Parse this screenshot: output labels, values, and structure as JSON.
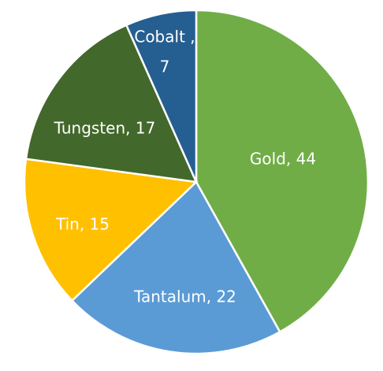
{
  "chart_data": {
    "type": "pie",
    "title": "",
    "start_angle_deg": 0,
    "direction": "clockwise",
    "legend": "none",
    "slices": [
      {
        "label": "Gold",
        "value": 44,
        "color": "#70AD47",
        "label_text": "Gold, 44"
      },
      {
        "label": "Tantalum",
        "value": 22,
        "color": "#5B9BD5",
        "label_text": "Tantalum, 22"
      },
      {
        "label": "Tin",
        "value": 15,
        "color": "#FFC000",
        "label_text": "Tin, 15"
      },
      {
        "label": "Tungsten",
        "value": 17,
        "color": "#43682B",
        "label_text": "Tungsten, 17"
      },
      {
        "label": "Cobalt",
        "value": 7,
        "color": "#255E91",
        "label_text": "Cobalt ,",
        "label_text_2": "7"
      }
    ]
  }
}
